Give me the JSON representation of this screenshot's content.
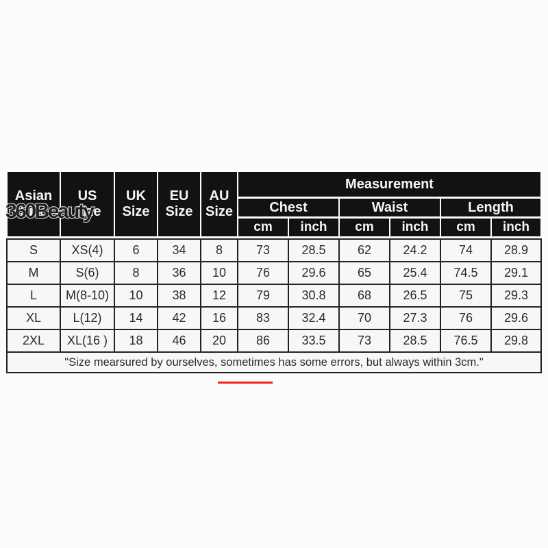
{
  "watermark": "360Beauty",
  "header": {
    "size_columns": [
      {
        "line1": "Asian",
        "line2": "Size"
      },
      {
        "line1": "US",
        "line2": "Size"
      },
      {
        "line1": "UK",
        "line2": "Size"
      },
      {
        "line1": "EU",
        "line2": "Size"
      },
      {
        "line1": "AU",
        "line2": "Size"
      }
    ],
    "measurement": "Measurement",
    "groups": [
      "Chest",
      "Waist",
      "Length"
    ],
    "units": [
      "cm",
      "inch",
      "cm",
      "inch",
      "cm",
      "inch"
    ]
  },
  "chart_data": {
    "type": "table",
    "title": "Measurement",
    "columns": [
      "Asian Size",
      "US Size",
      "UK Size",
      "EU Size",
      "AU Size",
      "Chest cm",
      "Chest inch",
      "Waist cm",
      "Waist inch",
      "Length cm",
      "Length inch"
    ],
    "rows": [
      [
        "S",
        "XS(4)",
        "6",
        "34",
        "8",
        "73",
        "28.5",
        "62",
        "24.2",
        "74",
        "28.9"
      ],
      [
        "M",
        "S(6)",
        "8",
        "36",
        "10",
        "76",
        "29.6",
        "65",
        "25.4",
        "74.5",
        "29.1"
      ],
      [
        "L",
        "M(8-10)",
        "10",
        "38",
        "12",
        "79",
        "30.8",
        "68",
        "26.5",
        "75",
        "29.3"
      ],
      [
        "XL",
        "L(12)",
        "14",
        "42",
        "16",
        "83",
        "32.4",
        "70",
        "27.3",
        "76",
        "29.6"
      ],
      [
        "2XL",
        "XL(16 )",
        "18",
        "46",
        "20",
        "86",
        "33.5",
        "73",
        "28.5",
        "76.5",
        "29.8"
      ]
    ],
    "note": "\"Size mearsured by ourselves, sometimes has some errors, but always within 3cm.\""
  },
  "colors": {
    "header_bg": "#121212",
    "cell_bg": "#f7f7f7",
    "grid_line": "#222222",
    "accent_red": "#ee2222"
  }
}
